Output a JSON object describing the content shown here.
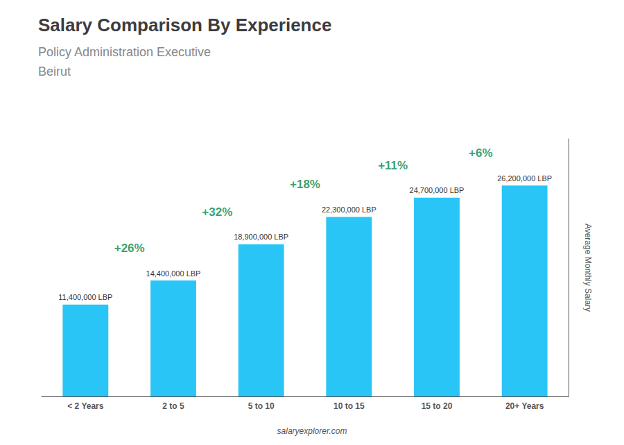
{
  "chart_data": {
    "type": "bar",
    "title": "Salary Comparison By Experience",
    "subtitle": [
      "Policy Administration Executive",
      "Beirut"
    ],
    "ylabel": "Average Monthly Salary",
    "source": "salaryexplorer.com",
    "categories": [
      "< 2 Years",
      "2 to 5",
      "5 to 10",
      "10 to 15",
      "15 to 20",
      "20+ Years"
    ],
    "values": [
      11400000,
      14400000,
      18900000,
      22300000,
      24700000,
      26200000
    ],
    "value_labels": [
      "11,400,000 LBP",
      "14,400,000 LBP",
      "18,900,000 LBP",
      "22,300,000 LBP",
      "24,700,000 LBP",
      "26,200,000 LBP"
    ],
    "annotations": [
      "+26%",
      "+32%",
      "+18%",
      "+11%",
      "+6%"
    ],
    "color": "#29c5f6",
    "ylim": [
      0,
      32000000
    ],
    "grid": false,
    "data_labels": true,
    "tick_labels": "x"
  }
}
